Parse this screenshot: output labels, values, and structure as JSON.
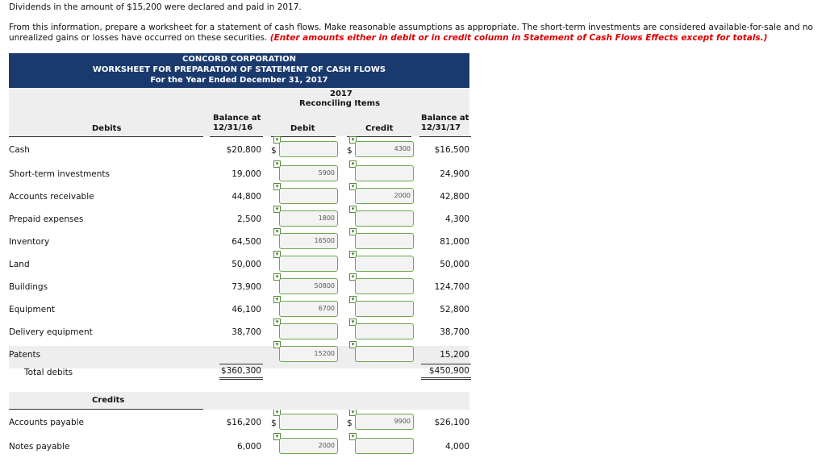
{
  "intro": {
    "line1": "Dividends in the amount of $15,200 were declared and paid in 2017.",
    "line2": "From this information, prepare a worksheet for a statement of cash flows. Make reasonable assumptions as appropriate. The short-term investments are considered available-for-sale and no unrealized gains or losses have occurred on these securities. ",
    "instruction": "(Enter amounts either in debit or in credit column in Statement of Cash Flows Effects except for totals.)"
  },
  "header": {
    "company": "CONCORD CORPORATION",
    "title": "WORKSHEET FOR PREPARATION OF STATEMENT OF CASH FLOWS",
    "period": "For the Year Ended December 31, 2017"
  },
  "columns": {
    "year": "2017",
    "reconciling": "Reconciling Items",
    "debits": "Debits",
    "bal1": "Balance at",
    "bal1_date": "12/31/16",
    "debit": "Debit",
    "credit": "Credit",
    "bal2": "Balance at",
    "bal2_date": "12/31/17"
  },
  "debits_rows": [
    {
      "label": "Cash",
      "bal16": "$20,800",
      "debit": "",
      "credit": "4300",
      "bal17": "$16,500",
      "dollar": true
    },
    {
      "label": "Short-term investments",
      "bal16": "19,000",
      "debit": "5900",
      "credit": "",
      "bal17": "24,900"
    },
    {
      "label": "Accounts receivable",
      "bal16": "44,800",
      "debit": "",
      "credit": "2000",
      "bal17": "42,800"
    },
    {
      "label": "Prepaid expenses",
      "bal16": "2,500",
      "debit": "1800",
      "credit": "",
      "bal17": "4,300"
    },
    {
      "label": "Inventory",
      "bal16": "64,500",
      "debit": "16500",
      "credit": "",
      "bal17": "81,000"
    },
    {
      "label": "Land",
      "bal16": "50,000",
      "debit": "",
      "credit": "",
      "bal17": "50,000"
    },
    {
      "label": "Buildings",
      "bal16": "73,900",
      "debit": "50800",
      "credit": "",
      "bal17": "124,700"
    },
    {
      "label": "Equipment",
      "bal16": "46,100",
      "debit": "6700",
      "credit": "",
      "bal17": "52,800"
    },
    {
      "label": "Delivery equipment",
      "bal16": "38,700",
      "debit": "",
      "credit": "",
      "bal17": "38,700"
    },
    {
      "label": "Patents",
      "bal16": "",
      "debit": "15200",
      "credit": "",
      "bal17": "15,200"
    }
  ],
  "total_debits": {
    "label": "Total debits",
    "bal16": "$360,300",
    "bal17": "$450,900"
  },
  "credits_heading": "Credits",
  "credits_rows": [
    {
      "label": "Accounts payable",
      "bal16": "$16,200",
      "debit": "",
      "credit": "9900",
      "bal17": "$26,100",
      "dollar": true
    },
    {
      "label": "Notes payable",
      "bal16": "6,000",
      "debit": "2000",
      "credit": "",
      "bal17": "4,000"
    }
  ],
  "dollar_sign": "$",
  "dropdown_icon": "checkbox-arrow-icon"
}
